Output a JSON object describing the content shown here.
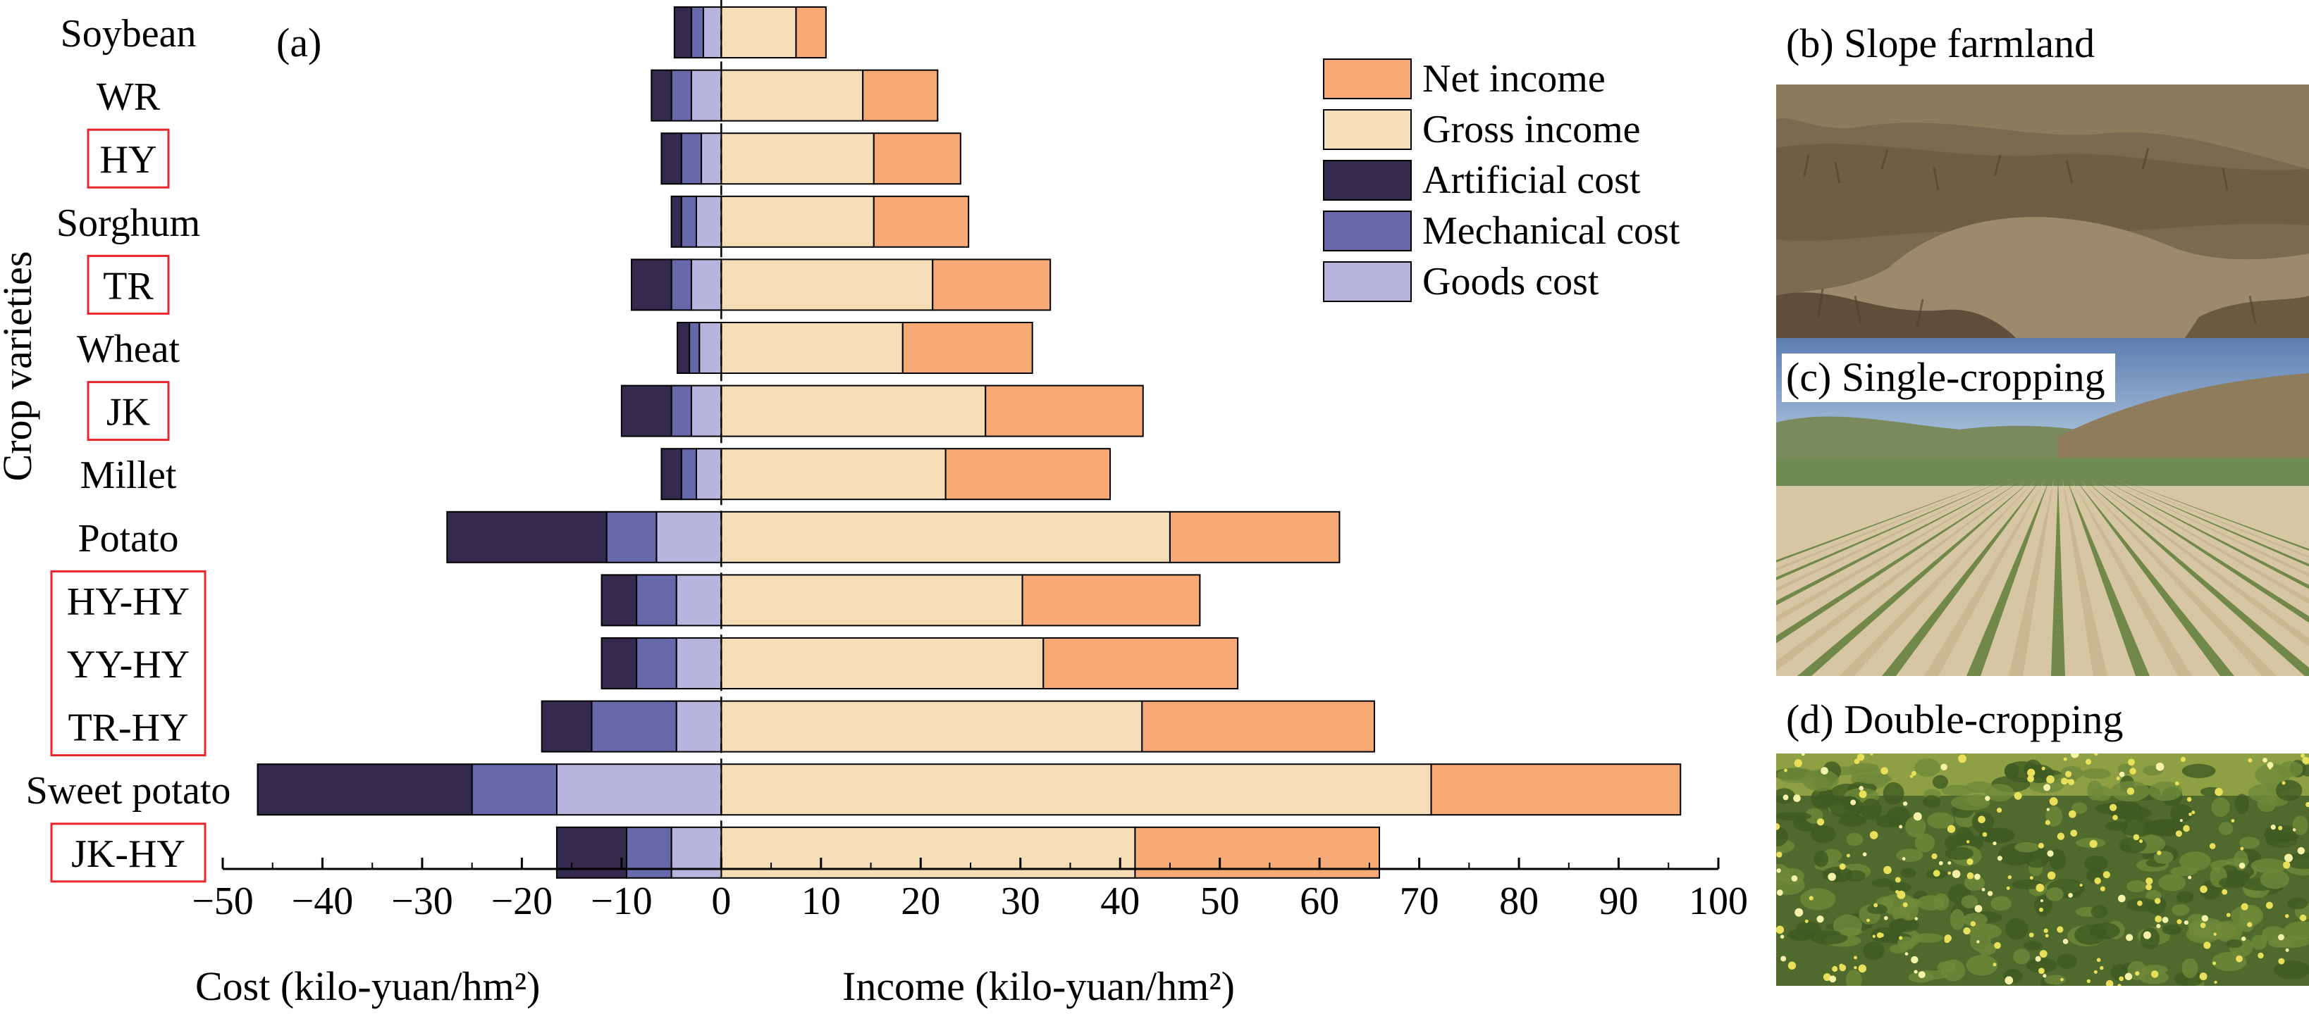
{
  "panel_label": "(a)",
  "chart_data": {
    "type": "bar",
    "orientation": "horizontal-diverging",
    "categories": [
      "Soybean",
      "WR",
      "HY",
      "Sorghum",
      "TR",
      "Wheat",
      "JK",
      "Millet",
      "Potato",
      "HY-HY",
      "YY-HY",
      "TR-HY",
      "Sweet potato",
      "JK-HY"
    ],
    "highlighted_categories": [
      "HY",
      "TR",
      "JK",
      "HY-HY",
      "YY-HY",
      "TR-HY",
      "JK-HY"
    ],
    "cost_series": [
      {
        "name": "Goods cost",
        "color": "#b7b4dd",
        "values": [
          -1.8,
          -3.0,
          -2.0,
          -2.5,
          -3.0,
          -2.2,
          -3.0,
          -2.5,
          -6.5,
          -4.5,
          -4.5,
          -4.5,
          -16.5,
          -5.0
        ]
      },
      {
        "name": "Mechanical cost",
        "color": "#6668aa",
        "values": [
          -1.2,
          -2.0,
          -2.0,
          -1.5,
          -2.0,
          -1.0,
          -2.0,
          -1.5,
          -5.0,
          -4.0,
          -4.0,
          -8.5,
          -8.5,
          -4.5
        ]
      },
      {
        "name": "Artificial cost",
        "color": "#332a4d",
        "values": [
          -1.7,
          -2.0,
          -2.0,
          -1.0,
          -4.0,
          -1.2,
          -5.0,
          -2.0,
          -16.0,
          -3.5,
          -3.5,
          -5.0,
          -21.5,
          -7.0
        ]
      }
    ],
    "income_series": [
      {
        "name": "Gross income",
        "color": "#f5deb7",
        "values": [
          7.5,
          14.2,
          15.3,
          15.3,
          21.2,
          18.2,
          26.5,
          22.5,
          45.0,
          30.2,
          32.3,
          42.2,
          71.2,
          41.5
        ]
      },
      {
        "name": "Net income",
        "color": "#f7aa76",
        "values": [
          3.0,
          7.5,
          8.7,
          9.5,
          11.8,
          13.0,
          15.8,
          16.5,
          17.0,
          17.8,
          19.5,
          23.3,
          25.0,
          24.5
        ]
      }
    ],
    "legend": {
      "position": "top-right",
      "entries": [
        {
          "name": "Net income",
          "color": "#f7aa76"
        },
        {
          "name": "Gross income",
          "color": "#f5deb7"
        },
        {
          "name": "Artificial cost",
          "color": "#332a4d"
        },
        {
          "name": "Mechanical cost",
          "color": "#6668aa"
        },
        {
          "name": "Goods cost",
          "color": "#b7b4dd"
        }
      ]
    },
    "xlim": [
      -50,
      100
    ],
    "xticks": [
      -50,
      -40,
      -30,
      -20,
      -10,
      0,
      10,
      20,
      30,
      40,
      50,
      60,
      70,
      80,
      90,
      100
    ],
    "xtick_labels": [
      "−50",
      "−40",
      "−30",
      "−20",
      "−10",
      "0",
      "10",
      "20",
      "30",
      "40",
      "50",
      "60",
      "70",
      "80",
      "90",
      "100"
    ],
    "xlabel_cost": "Cost (kilo-yuan/hm²)",
    "xlabel_income": "Income (kilo-yuan/hm²)",
    "ylabel": "Crop varieties",
    "grid": false
  },
  "photos": [
    {
      "id": "b",
      "title": "(b) Slope farmland",
      "scene": "slope-farmland"
    },
    {
      "id": "c",
      "title": "(c) Single-cropping",
      "scene": "single-cropping"
    },
    {
      "id": "d",
      "title": "(d) Double-cropping",
      "scene": "double-cropping"
    }
  ]
}
